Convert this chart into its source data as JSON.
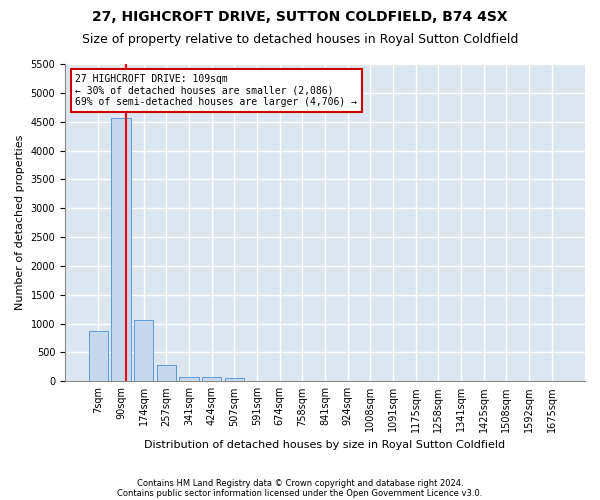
{
  "title": "27, HIGHCROFT DRIVE, SUTTON COLDFIELD, B74 4SX",
  "subtitle": "Size of property relative to detached houses in Royal Sutton Coldfield",
  "xlabel": "Distribution of detached houses by size in Royal Sutton Coldfield",
  "ylabel": "Number of detached properties",
  "footnote1": "Contains HM Land Registry data © Crown copyright and database right 2024.",
  "footnote2": "Contains public sector information licensed under the Open Government Licence v3.0.",
  "bar_labels": [
    "7sqm",
    "90sqm",
    "174sqm",
    "257sqm",
    "341sqm",
    "424sqm",
    "507sqm",
    "591sqm",
    "674sqm",
    "758sqm",
    "841sqm",
    "924sqm",
    "1008sqm",
    "1091sqm",
    "1175sqm",
    "1258sqm",
    "1341sqm",
    "1425sqm",
    "1508sqm",
    "1592sqm",
    "1675sqm"
  ],
  "bar_values": [
    880,
    4560,
    1060,
    290,
    80,
    80,
    50,
    0,
    0,
    0,
    0,
    0,
    0,
    0,
    0,
    0,
    0,
    0,
    0,
    0,
    0
  ],
  "bar_color": "#c5d8ee",
  "bar_edge_color": "#5b9bd5",
  "ylim": [
    0,
    5500
  ],
  "yticks": [
    0,
    500,
    1000,
    1500,
    2000,
    2500,
    3000,
    3500,
    4000,
    4500,
    5000,
    5500
  ],
  "annotation_text": "27 HIGHCROFT DRIVE: 109sqm\n← 30% of detached houses are smaller (2,086)\n69% of semi-detached houses are larger (4,706) →",
  "vline_x": 1.2,
  "annotation_box_color": "#ffffff",
  "annotation_box_edge": "#cc0000",
  "plot_bg_color": "#dce6f1",
  "fig_bg_color": "#ffffff",
  "grid_color": "#ffffff",
  "title_fontsize": 10,
  "subtitle_fontsize": 9,
  "tick_fontsize": 7,
  "ylabel_fontsize": 8,
  "xlabel_fontsize": 8,
  "annotation_fontsize": 7,
  "footnote_fontsize": 6
}
